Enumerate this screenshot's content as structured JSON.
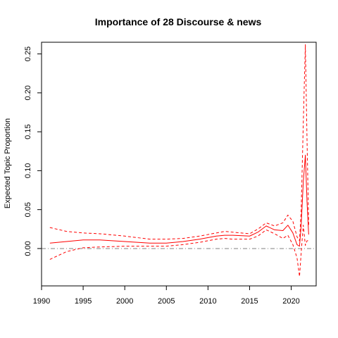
{
  "chart_data": {
    "type": "line",
    "title": "Importance of 28 Discourse & news",
    "xlabel": "",
    "ylabel": "Expected Topic Proportion",
    "xlim": [
      1990,
      2023
    ],
    "ylim": [
      -0.048,
      0.265
    ],
    "x_ticks": [
      "1990",
      "1995",
      "2000",
      "2005",
      "2010",
      "2015",
      "2020"
    ],
    "y_ticks": [
      "0.00",
      "0.05",
      "0.10",
      "0.15",
      "0.20",
      "0.25"
    ],
    "reference_line": {
      "y": 0,
      "style": "dash-dot",
      "color": "#808080"
    },
    "grid": false,
    "legend": "none",
    "series": [
      {
        "role": "estimate",
        "color": "#FF0000",
        "linestyle": "solid",
        "points": [
          [
            1991,
            0.007
          ],
          [
            1993,
            0.009
          ],
          [
            1995,
            0.011
          ],
          [
            1997,
            0.011
          ],
          [
            2000,
            0.009
          ],
          [
            2003,
            0.007
          ],
          [
            2005,
            0.007
          ],
          [
            2007,
            0.009
          ],
          [
            2009,
            0.012
          ],
          [
            2011,
            0.016
          ],
          [
            2012,
            0.017
          ],
          [
            2013,
            0.017
          ],
          [
            2015,
            0.016
          ],
          [
            2016,
            0.021
          ],
          [
            2017,
            0.029
          ],
          [
            2018,
            0.024
          ],
          [
            2019,
            0.023
          ],
          [
            2019.6,
            0.03
          ],
          [
            2020.2,
            0.02
          ],
          [
            2020.7,
            0.005
          ],
          [
            2021.0,
            0.003
          ],
          [
            2021.2,
            0.03
          ],
          [
            2021.45,
            0.085
          ],
          [
            2021.7,
            0.12
          ],
          [
            2021.9,
            0.06
          ],
          [
            2022.1,
            0.018
          ]
        ]
      },
      {
        "role": "upper-bound",
        "color": "#FF0000",
        "linestyle": "dashed",
        "points": [
          [
            1991,
            0.027
          ],
          [
            1993,
            0.022
          ],
          [
            1995,
            0.02
          ],
          [
            1997,
            0.019
          ],
          [
            2000,
            0.016
          ],
          [
            2003,
            0.012
          ],
          [
            2005,
            0.012
          ],
          [
            2007,
            0.013
          ],
          [
            2009,
            0.016
          ],
          [
            2011,
            0.02
          ],
          [
            2012,
            0.022
          ],
          [
            2013,
            0.021
          ],
          [
            2015,
            0.019
          ],
          [
            2016,
            0.025
          ],
          [
            2017,
            0.033
          ],
          [
            2018,
            0.029
          ],
          [
            2019,
            0.033
          ],
          [
            2019.6,
            0.043
          ],
          [
            2020.2,
            0.035
          ],
          [
            2020.7,
            0.015
          ],
          [
            2021.0,
            0.01
          ],
          [
            2021.2,
            0.05
          ],
          [
            2021.45,
            0.16
          ],
          [
            2021.7,
            0.262
          ],
          [
            2021.9,
            0.14
          ],
          [
            2022.1,
            0.03
          ]
        ]
      },
      {
        "role": "lower-bound",
        "color": "#FF0000",
        "linestyle": "dashed",
        "points": [
          [
            1991,
            -0.014
          ],
          [
            1993,
            -0.004
          ],
          [
            1995,
            0.001
          ],
          [
            1997,
            0.002
          ],
          [
            2000,
            0.003
          ],
          [
            2003,
            0.003
          ],
          [
            2005,
            0.003
          ],
          [
            2007,
            0.005
          ],
          [
            2009,
            0.008
          ],
          [
            2011,
            0.012
          ],
          [
            2012,
            0.013
          ],
          [
            2013,
            0.012
          ],
          [
            2015,
            0.012
          ],
          [
            2016,
            0.016
          ],
          [
            2017,
            0.024
          ],
          [
            2018,
            0.019
          ],
          [
            2019,
            0.013
          ],
          [
            2019.6,
            0.017
          ],
          [
            2020.2,
            0.005
          ],
          [
            2020.7,
            -0.012
          ],
          [
            2021.0,
            -0.036
          ],
          [
            2021.2,
            -0.005
          ],
          [
            2021.45,
            0.03
          ],
          [
            2021.7,
            0.004
          ],
          [
            2021.9,
            0.01
          ],
          [
            2022.1,
            0.01
          ]
        ]
      }
    ]
  }
}
